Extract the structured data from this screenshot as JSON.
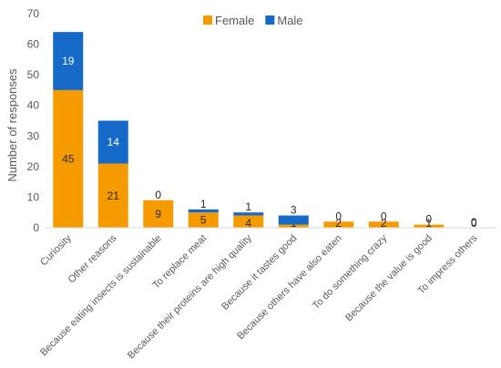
{
  "chart_data": {
    "type": "bar",
    "stacked": true,
    "ylabel": "Number of responses",
    "ylim": [
      0,
      70
    ],
    "yticks": [
      0,
      10,
      20,
      30,
      40,
      50,
      60,
      70
    ],
    "grid": false,
    "legend_position": "top",
    "categories": [
      "Curiosity",
      "Other reasons",
      "Because eating insects is sustainable",
      "To replace meat",
      "Because their proteins are high quality",
      "Because it tastes good",
      "Because others have also eaten",
      "To do something crazy",
      "Because the value is good",
      "To impress others"
    ],
    "series": [
      {
        "name": "Female",
        "color": "#F59B00",
        "values": [
          45,
          21,
          9,
          5,
          4,
          1,
          2,
          2,
          1,
          0
        ]
      },
      {
        "name": "Male",
        "color": "#1569C7",
        "values": [
          19,
          14,
          0,
          1,
          1,
          3,
          0,
          0,
          0,
          0
        ]
      }
    ]
  }
}
